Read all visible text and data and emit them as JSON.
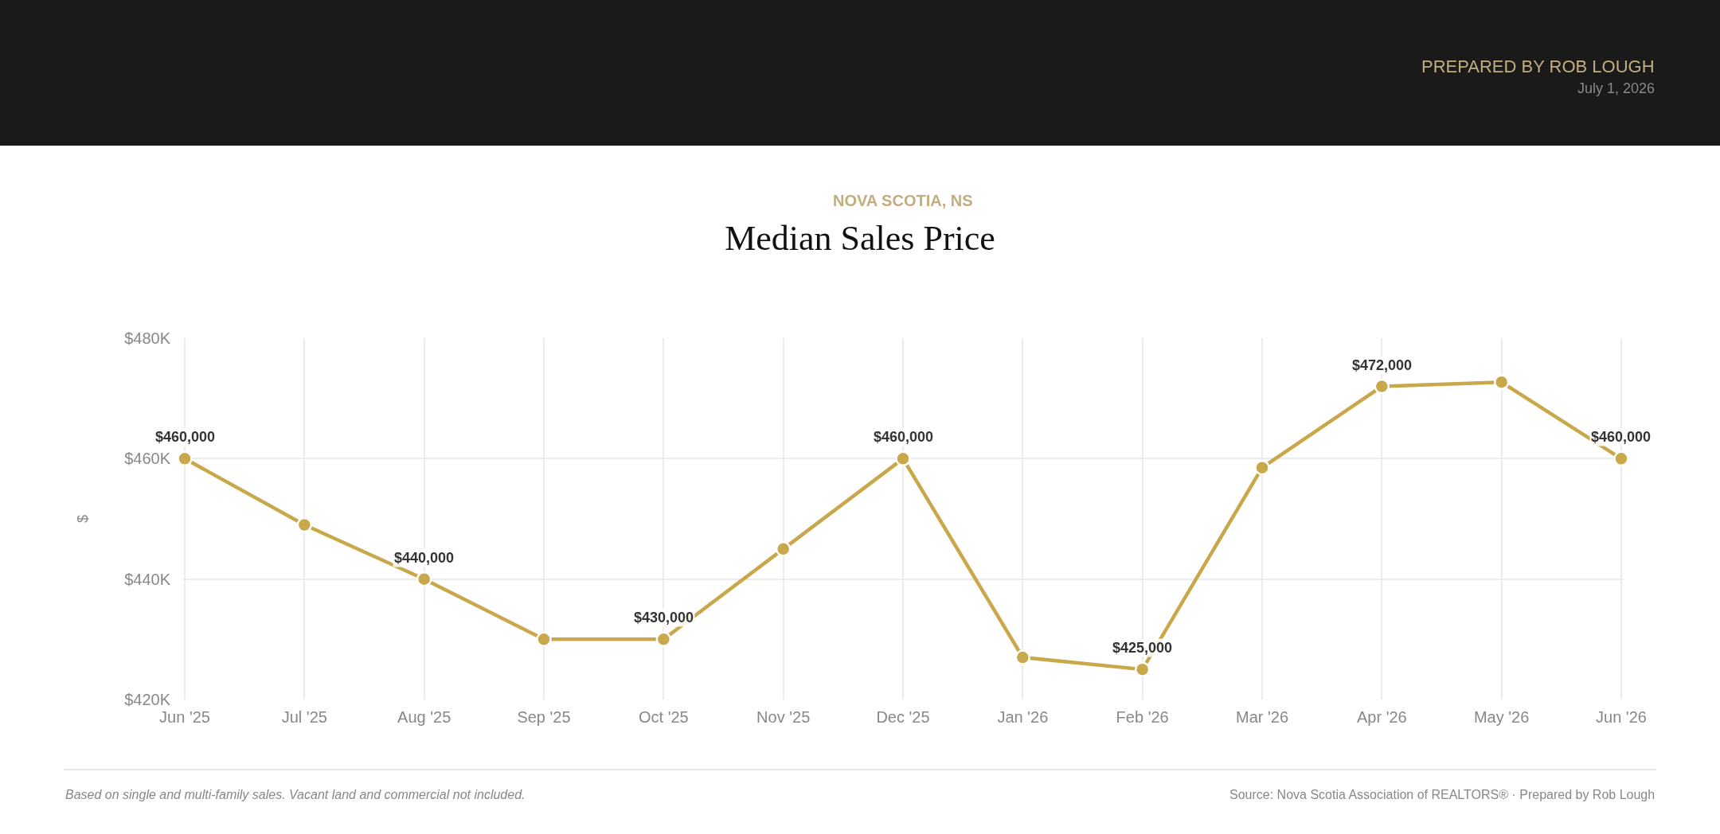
{
  "chart_data": {
    "type": "line",
    "title": "Median Sales Price",
    "subtitle": "NOVA SCOTIA, NS",
    "ylabel": "$",
    "annotations": [
      "PREPARED BY ROB LOUGH",
      "July 1, 2026",
      "Based on single and multi-family sales. Vacant land and commercial not included.",
      "Source: Nova Scotia Association of REALTORS® · Prepared by Rob Lough"
    ],
    "categories": [
      "Jun '25",
      "Jul '25",
      "Aug '25",
      "Sep '25",
      "Oct '25",
      "Nov '25",
      "Dec '25",
      "Jan '26",
      "Feb '26",
      "Mar '26",
      "Apr '26",
      "May '26",
      "Jun '26"
    ],
    "series": [
      {
        "color": "#c9a84c",
        "values": [
          460000,
          449000,
          440000,
          430000,
          430000,
          445000,
          460000,
          427000,
          425000,
          458500,
          472000,
          472700,
          460000
        ],
        "value_labels": [
          "$460,000",
          null,
          "$440,000",
          null,
          "$430,000",
          null,
          "$460,000",
          null,
          "$425,000",
          null,
          "$472,000",
          null,
          "$460,000"
        ]
      }
    ],
    "ylim": [
      420000,
      480000
    ],
    "yticks": [
      {
        "value": 420000,
        "label": "$420K"
      },
      {
        "value": 440000,
        "label": "$440K"
      },
      {
        "value": 460000,
        "label": "$460K"
      },
      {
        "value": 480000,
        "label": "$480K"
      }
    ],
    "grid": true,
    "marker": "circle",
    "line_style": "solid"
  }
}
